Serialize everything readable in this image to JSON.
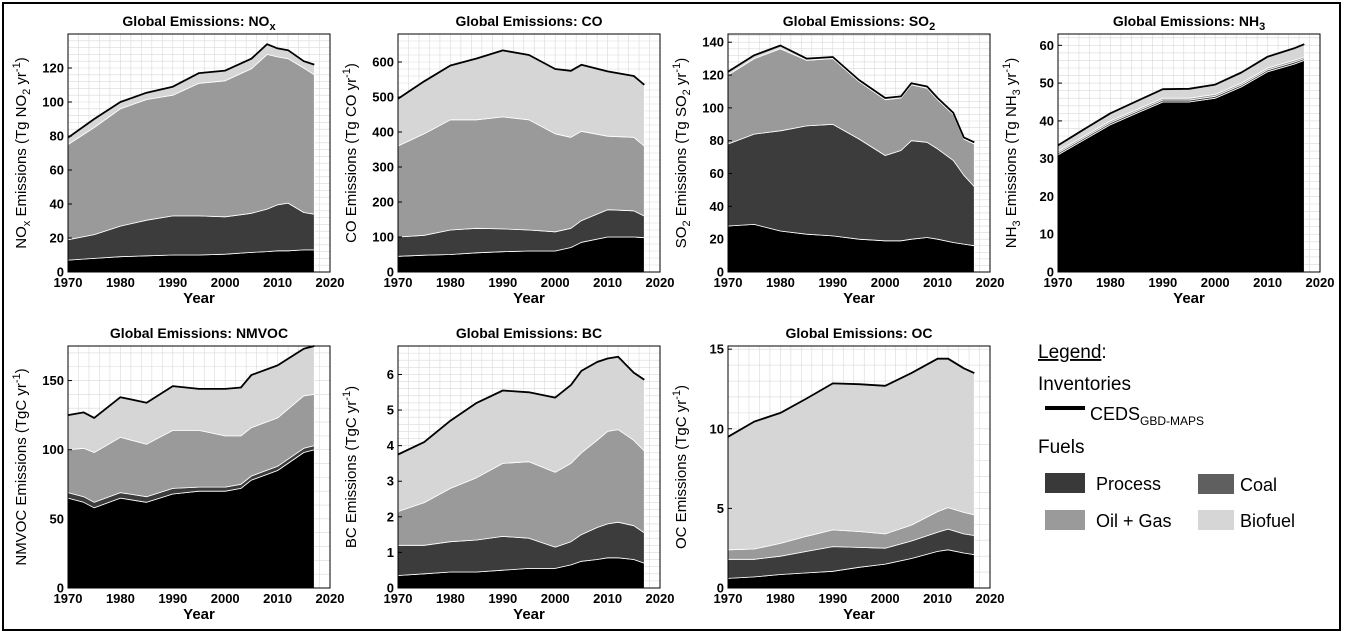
{
  "chart_data": [
    {
      "type": "area",
      "title": "Global Emissions: NO",
      "title_sub": "x",
      "xlabel": "Year",
      "ylabel": "NOx Emissions (Tg NO2 yr-1)",
      "ylabel_parts": [
        [
          "NO",
          ""
        ],
        [
          "x",
          "sub"
        ],
        [
          " Emissions (Tg NO",
          ""
        ],
        [
          "2",
          "sub"
        ],
        [
          " yr",
          ""
        ],
        [
          "-1",
          "sup"
        ],
        [
          ")",
          ""
        ]
      ],
      "x": [
        1970,
        1975,
        1980,
        1985,
        1990,
        1995,
        2000,
        2005,
        2008,
        2010,
        2012,
        2015,
        2017
      ],
      "xlim": [
        1970,
        2020
      ],
      "ylim": [
        0,
        140
      ],
      "yticks": [
        0,
        20,
        40,
        60,
        80,
        100,
        120
      ],
      "series": [
        {
          "name": "Process",
          "values": [
            7,
            8,
            9,
            9.5,
            10,
            10,
            10.5,
            11.5,
            12,
            12.5,
            12.5,
            13,
            13
          ]
        },
        {
          "name": "Coal",
          "values": [
            12,
            14,
            18,
            21,
            23,
            23,
            22,
            23,
            25,
            27,
            28,
            22,
            21
          ]
        },
        {
          "name": "Oil + Gas",
          "values": [
            56,
            63,
            69,
            71,
            71,
            78,
            80,
            85,
            91,
            87,
            85,
            85,
            82
          ]
        },
        {
          "name": "Biofuel",
          "values": [
            4,
            5,
            4,
            4,
            5,
            6,
            6,
            6,
            6,
            5,
            5,
            4,
            6
          ]
        }
      ],
      "total": [
        79,
        90,
        100,
        105.5,
        109,
        117,
        118.5,
        125.5,
        134,
        131.5,
        130.5,
        124,
        122
      ]
    },
    {
      "type": "area",
      "title": "Global Emissions: CO",
      "title_sub": "",
      "xlabel": "Year",
      "ylabel": "CO Emissions (Tg CO yr-1)",
      "ylabel_parts": [
        [
          "CO Emissions (Tg CO yr",
          ""
        ],
        [
          "-1",
          "sup"
        ],
        [
          ")",
          ""
        ]
      ],
      "x": [
        1970,
        1975,
        1980,
        1985,
        1990,
        1995,
        2000,
        2003,
        2005,
        2010,
        2015,
        2017
      ],
      "xlim": [
        1970,
        2020
      ],
      "ylim": [
        0,
        680
      ],
      "yticks": [
        0,
        100,
        200,
        300,
        400,
        500,
        600
      ],
      "series": [
        {
          "name": "Process",
          "values": [
            45,
            48,
            50,
            55,
            58,
            60,
            60,
            70,
            85,
            100,
            100,
            98
          ]
        },
        {
          "name": "Coal",
          "values": [
            55,
            57,
            70,
            70,
            65,
            60,
            55,
            55,
            62,
            78,
            75,
            62
          ]
        },
        {
          "name": "Oil + Gas",
          "values": [
            260,
            290,
            315,
            310,
            320,
            315,
            280,
            260,
            255,
            210,
            210,
            200
          ]
        },
        {
          "name": "Biofuel",
          "values": [
            135,
            150,
            155,
            175,
            190,
            185,
            185,
            190,
            190,
            185,
            175,
            175
          ]
        }
      ],
      "total": [
        495,
        545,
        590,
        610,
        633,
        620,
        580,
        575,
        592,
        573,
        560,
        535
      ]
    },
    {
      "type": "area",
      "title": "Global Emissions: SO",
      "title_sub": "2",
      "xlabel": "Year",
      "ylabel": "SO2 Emissions (Tg SO2 yr-1)",
      "ylabel_parts": [
        [
          "SO",
          ""
        ],
        [
          "2",
          "sub"
        ],
        [
          " Emissions (Tg SO",
          ""
        ],
        [
          "2",
          "sub"
        ],
        [
          " yr",
          ""
        ],
        [
          "-1",
          "sup"
        ],
        [
          ")",
          ""
        ]
      ],
      "x": [
        1970,
        1975,
        1980,
        1985,
        1990,
        1995,
        2000,
        2003,
        2005,
        2008,
        2010,
        2013,
        2015,
        2017
      ],
      "xlim": [
        1970,
        2020
      ],
      "ylim": [
        0,
        145
      ],
      "yticks": [
        0,
        20,
        40,
        60,
        80,
        100,
        120,
        140
      ],
      "series": [
        {
          "name": "Process",
          "values": [
            28,
            29,
            25,
            23,
            22,
            20,
            19,
            19,
            20,
            21,
            20,
            18,
            17,
            16
          ]
        },
        {
          "name": "Coal",
          "values": [
            50,
            55,
            61,
            66,
            68,
            61,
            52,
            55,
            60,
            58,
            55,
            50,
            42,
            36
          ]
        },
        {
          "name": "Oil + Gas",
          "values": [
            42,
            46,
            50,
            40,
            40,
            35,
            34,
            32,
            34,
            33,
            30,
            28,
            22,
            26
          ]
        },
        {
          "name": "Biofuel",
          "values": [
            2,
            2,
            2,
            1,
            1,
            1,
            1,
            1,
            1,
            1,
            1,
            1,
            1,
            1
          ]
        }
      ],
      "total": [
        122,
        132,
        138,
        130,
        131,
        117,
        106,
        107,
        115,
        113,
        106,
        97,
        82,
        79
      ]
    },
    {
      "type": "area",
      "title": "Global Emissions: NH",
      "title_sub": "3",
      "xlabel": "Year",
      "ylabel": "NH3 Emissions (Tg NH3 yr-1)",
      "ylabel_parts": [
        [
          "NH",
          ""
        ],
        [
          "3",
          "sub"
        ],
        [
          " Emissions (Tg NH",
          ""
        ],
        [
          "3",
          "sub"
        ],
        [
          " yr",
          ""
        ],
        [
          "-1",
          "sup"
        ],
        [
          ")",
          ""
        ]
      ],
      "x": [
        1970,
        1975,
        1980,
        1985,
        1990,
        1995,
        2000,
        2005,
        2010,
        2015,
        2017
      ],
      "xlim": [
        1970,
        2020
      ],
      "ylim": [
        0,
        63
      ],
      "yticks": [
        0,
        10,
        20,
        30,
        40,
        50,
        60
      ],
      "series": [
        {
          "name": "Process",
          "values": [
            31,
            35,
            39,
            42,
            45,
            45,
            46,
            49,
            53,
            55,
            56
          ]
        },
        {
          "name": "Coal",
          "values": [
            0.5,
            0.5,
            0.5,
            0.5,
            0.5,
            0.5,
            0.5,
            0.5,
            0.5,
            0.5,
            0.5
          ]
        },
        {
          "name": "Oil + Gas",
          "values": [
            0.5,
            0.5,
            0.5,
            0.5,
            0.5,
            0.5,
            0.5,
            0.5,
            0.5,
            0.5,
            0.5
          ]
        },
        {
          "name": "Biofuel",
          "values": [
            1.5,
            1.8,
            2,
            2.2,
            2.4,
            2.5,
            2.6,
            2.8,
            3,
            3.2,
            3.3
          ]
        }
      ],
      "total": [
        33.5,
        37.8,
        42,
        45.2,
        48.4,
        48.5,
        49.6,
        52.8,
        57,
        59.2,
        60.3
      ]
    },
    {
      "type": "area",
      "title": "Global Emissions: NMVOC",
      "title_sub": "",
      "xlabel": "Year",
      "ylabel": "NMVOC Emissions (TgC yr-1)",
      "ylabel_parts": [
        [
          "NMVOC Emissions (TgC yr",
          ""
        ],
        [
          "-1",
          "sup"
        ],
        [
          ")",
          ""
        ]
      ],
      "x": [
        1970,
        1973,
        1975,
        1980,
        1985,
        1990,
        1995,
        2000,
        2003,
        2005,
        2010,
        2015,
        2017
      ],
      "xlim": [
        1970,
        2020
      ],
      "ylim": [
        0,
        175
      ],
      "yticks": [
        0,
        50,
        100,
        150
      ],
      "series": [
        {
          "name": "Process",
          "values": [
            65,
            62,
            58,
            65,
            62,
            68,
            70,
            70,
            72,
            78,
            85,
            98,
            100
          ]
        },
        {
          "name": "Coal",
          "values": [
            4,
            4,
            4,
            4,
            4,
            4,
            3,
            3,
            3,
            3,
            3,
            3,
            3
          ]
        },
        {
          "name": "Oil + Gas",
          "values": [
            31,
            35,
            36,
            40,
            38,
            42,
            41,
            37,
            35,
            35,
            35,
            38,
            37
          ]
        },
        {
          "name": "Biofuel",
          "values": [
            25,
            26,
            25,
            29,
            30,
            32,
            30,
            34,
            35,
            38,
            38,
            34,
            35
          ]
        }
      ],
      "total": [
        125,
        127,
        123,
        138,
        134,
        146,
        144,
        144,
        145,
        154,
        161,
        173,
        175
      ]
    },
    {
      "type": "area",
      "title": "Global Emissions: BC",
      "title_sub": "",
      "xlabel": "Year",
      "ylabel": "BC Emissions (TgC yr-1)",
      "ylabel_parts": [
        [
          "BC Emissions (TgC yr",
          ""
        ],
        [
          "-1",
          "sup"
        ],
        [
          ")",
          ""
        ]
      ],
      "x": [
        1970,
        1975,
        1980,
        1985,
        1990,
        1995,
        2000,
        2003,
        2005,
        2008,
        2010,
        2012,
        2015,
        2017
      ],
      "xlim": [
        1970,
        2020
      ],
      "ylim": [
        0,
        6.8
      ],
      "yticks": [
        0,
        1,
        2,
        3,
        4,
        5,
        6
      ],
      "series": [
        {
          "name": "Process",
          "values": [
            0.35,
            0.4,
            0.45,
            0.45,
            0.5,
            0.55,
            0.55,
            0.65,
            0.75,
            0.8,
            0.85,
            0.85,
            0.8,
            0.7
          ]
        },
        {
          "name": "Coal",
          "values": [
            0.85,
            0.8,
            0.85,
            0.9,
            0.95,
            0.85,
            0.6,
            0.65,
            0.75,
            0.9,
            0.95,
            1.0,
            0.95,
            0.85
          ]
        },
        {
          "name": "Oil + Gas",
          "values": [
            0.95,
            1.2,
            1.5,
            1.75,
            2.05,
            2.15,
            2.1,
            2.2,
            2.3,
            2.45,
            2.6,
            2.6,
            2.4,
            2.3
          ]
        },
        {
          "name": "Biofuel",
          "values": [
            1.6,
            1.7,
            1.9,
            2.1,
            2.05,
            1.95,
            2.1,
            2.2,
            2.3,
            2.2,
            2.05,
            2.05,
            1.9,
            2.0
          ]
        }
      ],
      "total": [
        3.75,
        4.1,
        4.7,
        5.2,
        5.55,
        5.5,
        5.35,
        5.7,
        6.1,
        6.35,
        6.45,
        6.5,
        6.05,
        5.85
      ]
    },
    {
      "type": "area",
      "title": "Global Emissions: OC",
      "title_sub": "",
      "xlabel": "Year",
      "ylabel": "OC Emissions (TgC yr-1)",
      "ylabel_parts": [
        [
          "OC Emissions (TgC yr",
          ""
        ],
        [
          "-1",
          "sup"
        ],
        [
          ")",
          ""
        ]
      ],
      "x": [
        1970,
        1975,
        1980,
        1985,
        1990,
        1995,
        2000,
        2005,
        2010,
        2012,
        2015,
        2017
      ],
      "xlim": [
        1970,
        2020
      ],
      "ylim": [
        0,
        15.2
      ],
      "yticks": [
        0,
        5,
        10,
        15
      ],
      "series": [
        {
          "name": "Process",
          "values": [
            0.6,
            0.7,
            0.85,
            0.95,
            1.05,
            1.3,
            1.5,
            1.85,
            2.3,
            2.4,
            2.2,
            2.1
          ]
        },
        {
          "name": "Coal",
          "values": [
            1.2,
            1.1,
            1.15,
            1.35,
            1.55,
            1.25,
            1.0,
            1.1,
            1.2,
            1.3,
            1.2,
            1.2
          ]
        },
        {
          "name": "Oil + Gas",
          "values": [
            0.6,
            0.65,
            0.8,
            0.95,
            1.05,
            1.0,
            0.9,
            1.0,
            1.3,
            1.35,
            1.35,
            1.3
          ]
        },
        {
          "name": "Biofuel",
          "values": [
            7.1,
            8.0,
            8.2,
            8.65,
            9.2,
            9.25,
            9.3,
            9.55,
            9.6,
            9.35,
            9.05,
            8.9
          ]
        }
      ],
      "total": [
        9.5,
        10.45,
        11.0,
        11.9,
        12.85,
        12.8,
        12.7,
        13.5,
        14.4,
        14.4,
        13.8,
        13.5
      ]
    }
  ],
  "legend": {
    "heading": "Legend",
    "heading_suffix": ":",
    "inventories_label": "Inventories",
    "ceds_main": "CEDS",
    "ceds_sub": "GBD-MAPS",
    "fuels_label": "Fuels",
    "items": [
      {
        "label": "Process",
        "color": "#393939"
      },
      {
        "label": "Coal",
        "color": "#5f5f5f"
      },
      {
        "label": "Oil + Gas",
        "color": "#9a9a9a"
      },
      {
        "label": "Biofuel",
        "color": "#d6d6d6"
      }
    ],
    "line_color": "#000000"
  },
  "colors": {
    "process": "#000000",
    "coal": "#3c3c3c",
    "oil_gas": "#9a9a9a",
    "biofuel": "#d6d6d6",
    "total_line": "#000000",
    "grid": "#d9d9d9"
  }
}
